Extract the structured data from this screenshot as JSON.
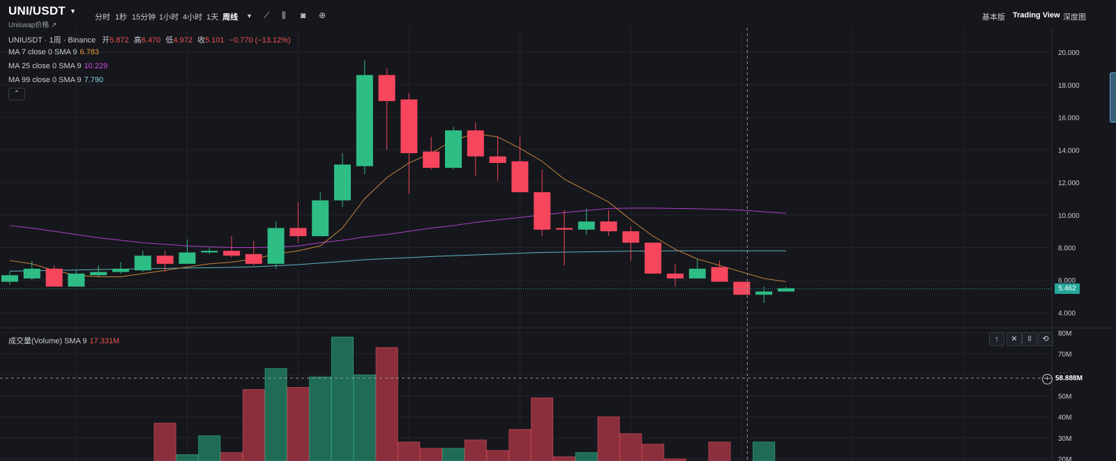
{
  "header": {
    "pair": "UNI/USDT",
    "subtitle": "Uniswap价格 ↗",
    "timeframes": [
      "分时",
      "1秒",
      "15分钟",
      "1小时",
      "4小时",
      "1天",
      "周线"
    ],
    "active_timeframe": "周线",
    "views": [
      "基本版",
      "Trading View",
      "深度图"
    ],
    "active_view": "Trading View"
  },
  "legend": {
    "symbol_line": "UNIUSDT · 1周 · Binance",
    "open_label": "开",
    "open": "5.872",
    "high_label": "高",
    "high": "6.470",
    "low_label": "低",
    "low": "4.972",
    "close_label": "收",
    "close": "5.101",
    "change": "−0.770 (−13.12%)",
    "ma7_label": "MA 7 close 0 SMA 9",
    "ma7_value": "6.783",
    "ma25_label": "MA 25 close 0 SMA 9",
    "ma25_value": "10.229",
    "ma99_label": "MA 99 close 0 SMA 9",
    "ma99_value": "7.790",
    "volume_label": "成交量(Volume) SMA 9",
    "volume_value": "17.331M"
  },
  "price_tag": "5.462",
  "volume_tag": "58.888M",
  "colors": {
    "up": "#26a69a",
    "down": "#ef5350",
    "ma7": "#c9873f",
    "ma25": "#b33fd0",
    "ma99": "#5fb7c4",
    "background": "#16171c"
  },
  "chart_data": {
    "type": "candlestick",
    "price_axis": {
      "ticks": [
        "20.000",
        "18.000",
        "16.000",
        "14.000",
        "12.000",
        "10.000",
        "8.000",
        "6.000",
        "4.000"
      ],
      "range": [
        3.1,
        21.5
      ]
    },
    "volume_axis": {
      "ticks": [
        "80M",
        "70M",
        "60M",
        "50M",
        "40M",
        "30M",
        "20M"
      ],
      "range": [
        19,
        82
      ]
    },
    "candles": [
      {
        "o": 5.9,
        "h": 6.5,
        "l": 5.7,
        "c": 6.3
      },
      {
        "o": 6.1,
        "h": 7.2,
        "l": 6.0,
        "c": 6.7
      },
      {
        "o": 6.7,
        "h": 6.9,
        "l": 5.6,
        "c": 5.6
      },
      {
        "o": 5.6,
        "h": 6.6,
        "l": 5.6,
        "c": 6.4
      },
      {
        "o": 6.3,
        "h": 6.9,
        "l": 6.2,
        "c": 6.5
      },
      {
        "o": 6.5,
        "h": 7.1,
        "l": 6.4,
        "c": 6.7
      },
      {
        "o": 6.6,
        "h": 7.8,
        "l": 6.5,
        "c": 7.5
      },
      {
        "o": 7.5,
        "h": 7.8,
        "l": 6.5,
        "c": 7.0
      },
      {
        "o": 7.0,
        "h": 8.5,
        "l": 7.0,
        "c": 7.7
      },
      {
        "o": 7.7,
        "h": 8.0,
        "l": 7.6,
        "c": 7.8
      },
      {
        "o": 7.8,
        "h": 8.7,
        "l": 7.4,
        "c": 7.5
      },
      {
        "o": 7.6,
        "h": 8.4,
        "l": 6.9,
        "c": 7.0
      },
      {
        "o": 7.0,
        "h": 9.6,
        "l": 6.7,
        "c": 9.2
      },
      {
        "o": 9.2,
        "h": 10.8,
        "l": 8.3,
        "c": 8.7
      },
      {
        "o": 8.7,
        "h": 11.4,
        "l": 8.7,
        "c": 10.9
      },
      {
        "o": 10.9,
        "h": 13.8,
        "l": 10.5,
        "c": 13.1
      },
      {
        "o": 13.0,
        "h": 19.5,
        "l": 12.5,
        "c": 18.6
      },
      {
        "o": 18.6,
        "h": 19.0,
        "l": 14.0,
        "c": 17.0
      },
      {
        "o": 17.1,
        "h": 17.5,
        "l": 11.3,
        "c": 13.8
      },
      {
        "o": 13.9,
        "h": 14.8,
        "l": 12.8,
        "c": 12.9
      },
      {
        "o": 12.9,
        "h": 15.4,
        "l": 12.8,
        "c": 15.2
      },
      {
        "o": 15.2,
        "h": 15.7,
        "l": 12.4,
        "c": 13.6
      },
      {
        "o": 13.6,
        "h": 14.8,
        "l": 12.1,
        "c": 13.2
      },
      {
        "o": 13.3,
        "h": 14.8,
        "l": 11.4,
        "c": 11.4
      },
      {
        "o": 11.4,
        "h": 12.8,
        "l": 8.7,
        "c": 9.1
      },
      {
        "o": 9.2,
        "h": 10.3,
        "l": 6.9,
        "c": 9.1
      },
      {
        "o": 9.1,
        "h": 10.4,
        "l": 8.8,
        "c": 9.6
      },
      {
        "o": 9.6,
        "h": 10.3,
        "l": 8.7,
        "c": 9.0
      },
      {
        "o": 9.0,
        "h": 9.3,
        "l": 7.2,
        "c": 8.3
      },
      {
        "o": 8.3,
        "h": 8.3,
        "l": 6.4,
        "c": 6.4
      },
      {
        "o": 6.4,
        "h": 7.0,
        "l": 5.6,
        "c": 6.1
      },
      {
        "o": 6.1,
        "h": 7.3,
        "l": 6.1,
        "c": 6.7
      },
      {
        "o": 6.8,
        "h": 7.2,
        "l": 5.9,
        "c": 5.9
      },
      {
        "o": 5.9,
        "h": 5.9,
        "l": 5.1,
        "c": 5.1
      },
      {
        "o": 5.1,
        "h": 5.6,
        "l": 4.6,
        "c": 5.3
      },
      {
        "o": 5.3,
        "h": 5.6,
        "l": 5.3,
        "c": 5.5
      }
    ],
    "volumes": [
      null,
      null,
      null,
      18,
      null,
      null,
      null,
      37,
      22,
      31,
      23,
      53,
      63,
      54,
      59,
      78,
      60,
      73,
      28,
      25,
      25,
      29,
      24,
      34,
      49,
      21,
      23,
      40,
      32,
      27,
      20,
      17,
      28,
      16,
      28,
      null
    ],
    "ma7": [
      7.2,
      7.0,
      6.6,
      6.3,
      6.2,
      6.2,
      6.4,
      6.6,
      6.8,
      7.0,
      7.1,
      7.3,
      7.6,
      7.8,
      8.1,
      9.2,
      11.0,
      12.3,
      13.2,
      13.8,
      14.6,
      15.0,
      14.8,
      14.1,
      13.3,
      12.2,
      11.5,
      10.8,
      9.7,
      8.7,
      7.9,
      7.3,
      6.9,
      6.5,
      6.1,
      5.9
    ],
    "ma25": [
      9.35,
      9.2,
      9.0,
      8.8,
      8.6,
      8.45,
      8.3,
      8.2,
      8.1,
      8.05,
      8.0,
      8.0,
      8.02,
      8.1,
      8.3,
      8.45,
      8.65,
      8.8,
      9.0,
      9.2,
      9.35,
      9.55,
      9.7,
      9.85,
      10.0,
      10.15,
      10.28,
      10.4,
      10.42,
      10.42,
      10.4,
      10.38,
      10.35,
      10.3,
      10.2,
      10.1
    ],
    "ma99": [
      6.55,
      6.57,
      6.6,
      6.62,
      6.65,
      6.67,
      6.7,
      6.72,
      6.74,
      6.76,
      6.78,
      6.82,
      6.88,
      6.95,
      7.05,
      7.15,
      7.25,
      7.32,
      7.38,
      7.45,
      7.5,
      7.55,
      7.6,
      7.65,
      7.7,
      7.72,
      7.74,
      7.76,
      7.78,
      7.79,
      7.8,
      7.8,
      7.8,
      7.8,
      7.8,
      7.8
    ]
  }
}
